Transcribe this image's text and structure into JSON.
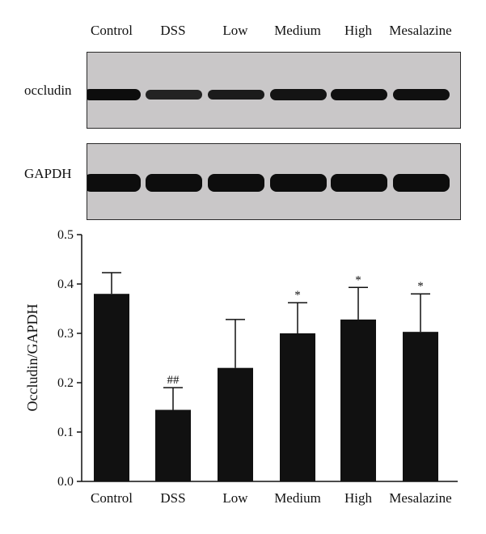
{
  "blot": {
    "lanes": [
      "Control",
      "DSS",
      "Low",
      "Medium",
      "High",
      "Mesalazine"
    ],
    "rows": [
      {
        "label": "occludin",
        "band_intensity": [
          1.0,
          0.55,
          0.7,
          0.85,
          0.95,
          0.95
        ]
      },
      {
        "label": "GAPDH",
        "band_intensity": [
          1.0,
          1.0,
          1.0,
          1.0,
          1.0,
          1.0
        ]
      }
    ]
  },
  "chart_data": {
    "type": "bar",
    "categories": [
      "Control",
      "DSS",
      "Low",
      "Medium",
      "High",
      "Mesalazine"
    ],
    "values": [
      0.38,
      0.145,
      0.23,
      0.3,
      0.328,
      0.303
    ],
    "error_upper": [
      0.423,
      0.19,
      0.328,
      0.362,
      0.393,
      0.38
    ],
    "annotations": [
      "",
      "##",
      "",
      "*",
      "*",
      "*"
    ],
    "ylabel": "Occludin/GAPDH",
    "xlabel": "",
    "ylim": [
      0,
      0.5
    ],
    "yticks": [
      "0.0",
      "0.1",
      "0.2",
      "0.3",
      "0.4",
      "0.5"
    ],
    "bar_color": "#111111",
    "grid": false
  }
}
